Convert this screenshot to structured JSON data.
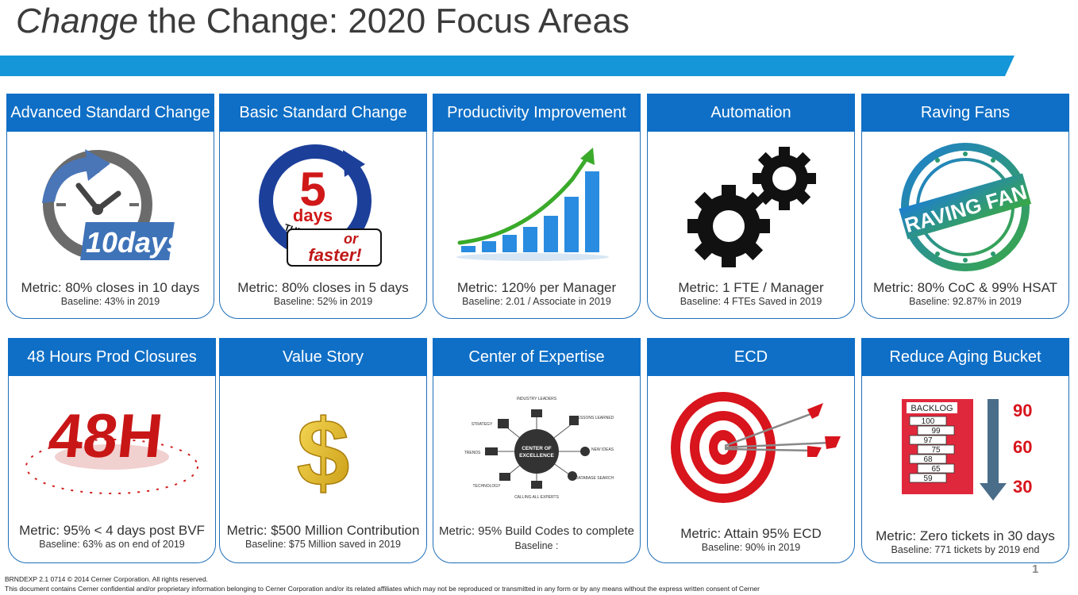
{
  "title": {
    "emphasis": "Change",
    "rest": " the Change: 2020 Focus Areas"
  },
  "colors": {
    "header_blue": "#0f6fc6",
    "banner_blue": "#1596d8",
    "border_blue": "#1e6fb8"
  },
  "cards": [
    {
      "title": "Advanced Standard Change",
      "metric": "Metric: 80% closes in 10 days",
      "baseline": "Baseline: 43% in 2019",
      "icon": "clock-10-days-icon",
      "badge": "10days"
    },
    {
      "title": "Basic Standard Change",
      "metric": "Metric: 80% closes in 5 days",
      "baseline": "Baseline: 52% in 2019",
      "icon": "5-days-turnaround-icon",
      "badge_num": "5",
      "badge_days": "days",
      "badge_ring": "TURNAROUND",
      "badge_or": "or",
      "badge_faster": "faster!"
    },
    {
      "title": "Productivity Improvement",
      "metric": "Metric: 120% per Manager",
      "baseline": "Baseline: 2.01 / Associate in 2019",
      "icon": "growth-bar-chart-icon"
    },
    {
      "title": "Automation",
      "metric": "Metric: 1 FTE / Manager",
      "baseline": "Baseline: 4 FTEs Saved in 2019",
      "icon": "gears-icon"
    },
    {
      "title": "Raving Fans",
      "metric": "Metric: 80% CoC & 99% HSAT",
      "baseline": "Baseline: 92.87% in 2019",
      "icon": "raving-fan-stamp-icon",
      "stamp_text": "RAVING FAN"
    },
    {
      "title": "48 Hours Prod Closures",
      "metric": "Metric: 95% < 4 days post BVF",
      "baseline": "Baseline: 63% as on end of 2019",
      "icon": "48h-icon",
      "badge": "48H"
    },
    {
      "title": "Value Story",
      "metric": "Metric: $500 Million Contribution",
      "baseline": "Baseline: $75 Million saved in 2019",
      "icon": "dollar-sign-icon",
      "symbol": "$"
    },
    {
      "title": "Center of Expertise",
      "metric": "Metric: 95% Build Codes to complete",
      "baseline": "Baseline :",
      "icon": "center-of-excellence-diagram-icon",
      "coe": {
        "center": [
          "CENTER OF",
          "EXCELLENCE"
        ],
        "nodes": [
          "INDUSTRY LEADERS",
          "LESSONS LEARNED",
          "NEW IDEAS",
          "DATABASE SEARCH",
          "CALLING ALL EXPERTS",
          "TECHNOLOGY",
          "TRENDS",
          "STRATEGY"
        ]
      }
    },
    {
      "title": "ECD",
      "metric": "Metric: Attain 95% ECD",
      "baseline": "Baseline: 90% in 2019",
      "icon": "target-arrows-icon"
    },
    {
      "title": "Reduce Aging Bucket",
      "metric": "Metric: Zero tickets in 30 days",
      "baseline": "Baseline: 771 tickets by 2019 end",
      "icon": "backlog-down-arrow-icon",
      "backlog": {
        "label": "BACKLOG",
        "items": [
          "100",
          "99",
          "97",
          "75",
          "68",
          "65",
          "59"
        ],
        "levels": [
          "90",
          "60",
          "30"
        ]
      }
    }
  ],
  "footer": {
    "line1": "BRNDEXP 2.1 0714    © 2014 Cerner Corporation.  All rights reserved.",
    "line2": "This document contains Cerner confidential and/or proprietary information belonging to Cerner Corporation and/or its related affiliates which may not be reproduced or transmitted in any form or by any means without the express written consent of Cerner"
  },
  "page_number": "1"
}
